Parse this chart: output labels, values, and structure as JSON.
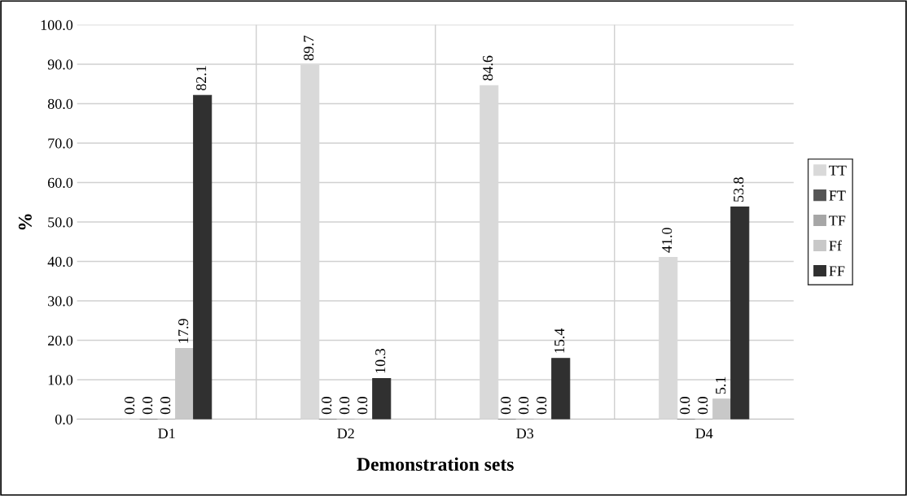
{
  "chart_data": {
    "type": "bar",
    "xlabel": "Demonstration sets",
    "ylabel": "%",
    "categories": [
      "D1",
      "D2",
      "D3",
      "D4"
    ],
    "series": [
      {
        "name": "TT",
        "color": "#d9d9d9",
        "values": [
          0.0,
          89.7,
          84.6,
          41.0
        ],
        "value_labels": [
          "0.0",
          "89.7",
          "84.6",
          "41.0"
        ]
      },
      {
        "name": "FT",
        "color": "#555555",
        "values": [
          0.0,
          0.0,
          0.0,
          0.0
        ],
        "value_labels": [
          "0.0",
          "0.0",
          "0.0",
          "0.0"
        ]
      },
      {
        "name": "TF",
        "color": "#a6a6a6",
        "values": [
          0.0,
          0.0,
          0.0,
          0.0
        ],
        "value_labels": [
          "0.0",
          "0.0",
          "0.0",
          "0.0"
        ]
      },
      {
        "name": "Ff",
        "color": "#c8c8c8",
        "values": [
          17.9,
          0.0,
          0.0,
          5.1
        ],
        "value_labels": [
          "17.9",
          "0.0",
          "0.0",
          "5.1"
        ]
      },
      {
        "name": "FF",
        "color": "#303030",
        "values": [
          82.1,
          10.3,
          15.4,
          53.8
        ],
        "value_labels": [
          "82.1",
          "10.3",
          "15.4",
          "53.8"
        ]
      }
    ],
    "ylim": [
      0,
      100
    ],
    "yticks": [
      {
        "value": 0,
        "label": "0.0"
      },
      {
        "value": 10,
        "label": "10.0"
      },
      {
        "value": 20,
        "label": "20.0"
      },
      {
        "value": 30,
        "label": "30.0"
      },
      {
        "value": 40,
        "label": "40.0"
      },
      {
        "value": 50,
        "label": "50.0"
      },
      {
        "value": 60,
        "label": "60.0"
      },
      {
        "value": 70,
        "label": "70.0"
      },
      {
        "value": 80,
        "label": "80.0"
      },
      {
        "value": 90,
        "label": "90.0"
      },
      {
        "value": 100,
        "label": "100.0"
      }
    ],
    "grid": true,
    "legend": "right"
  }
}
